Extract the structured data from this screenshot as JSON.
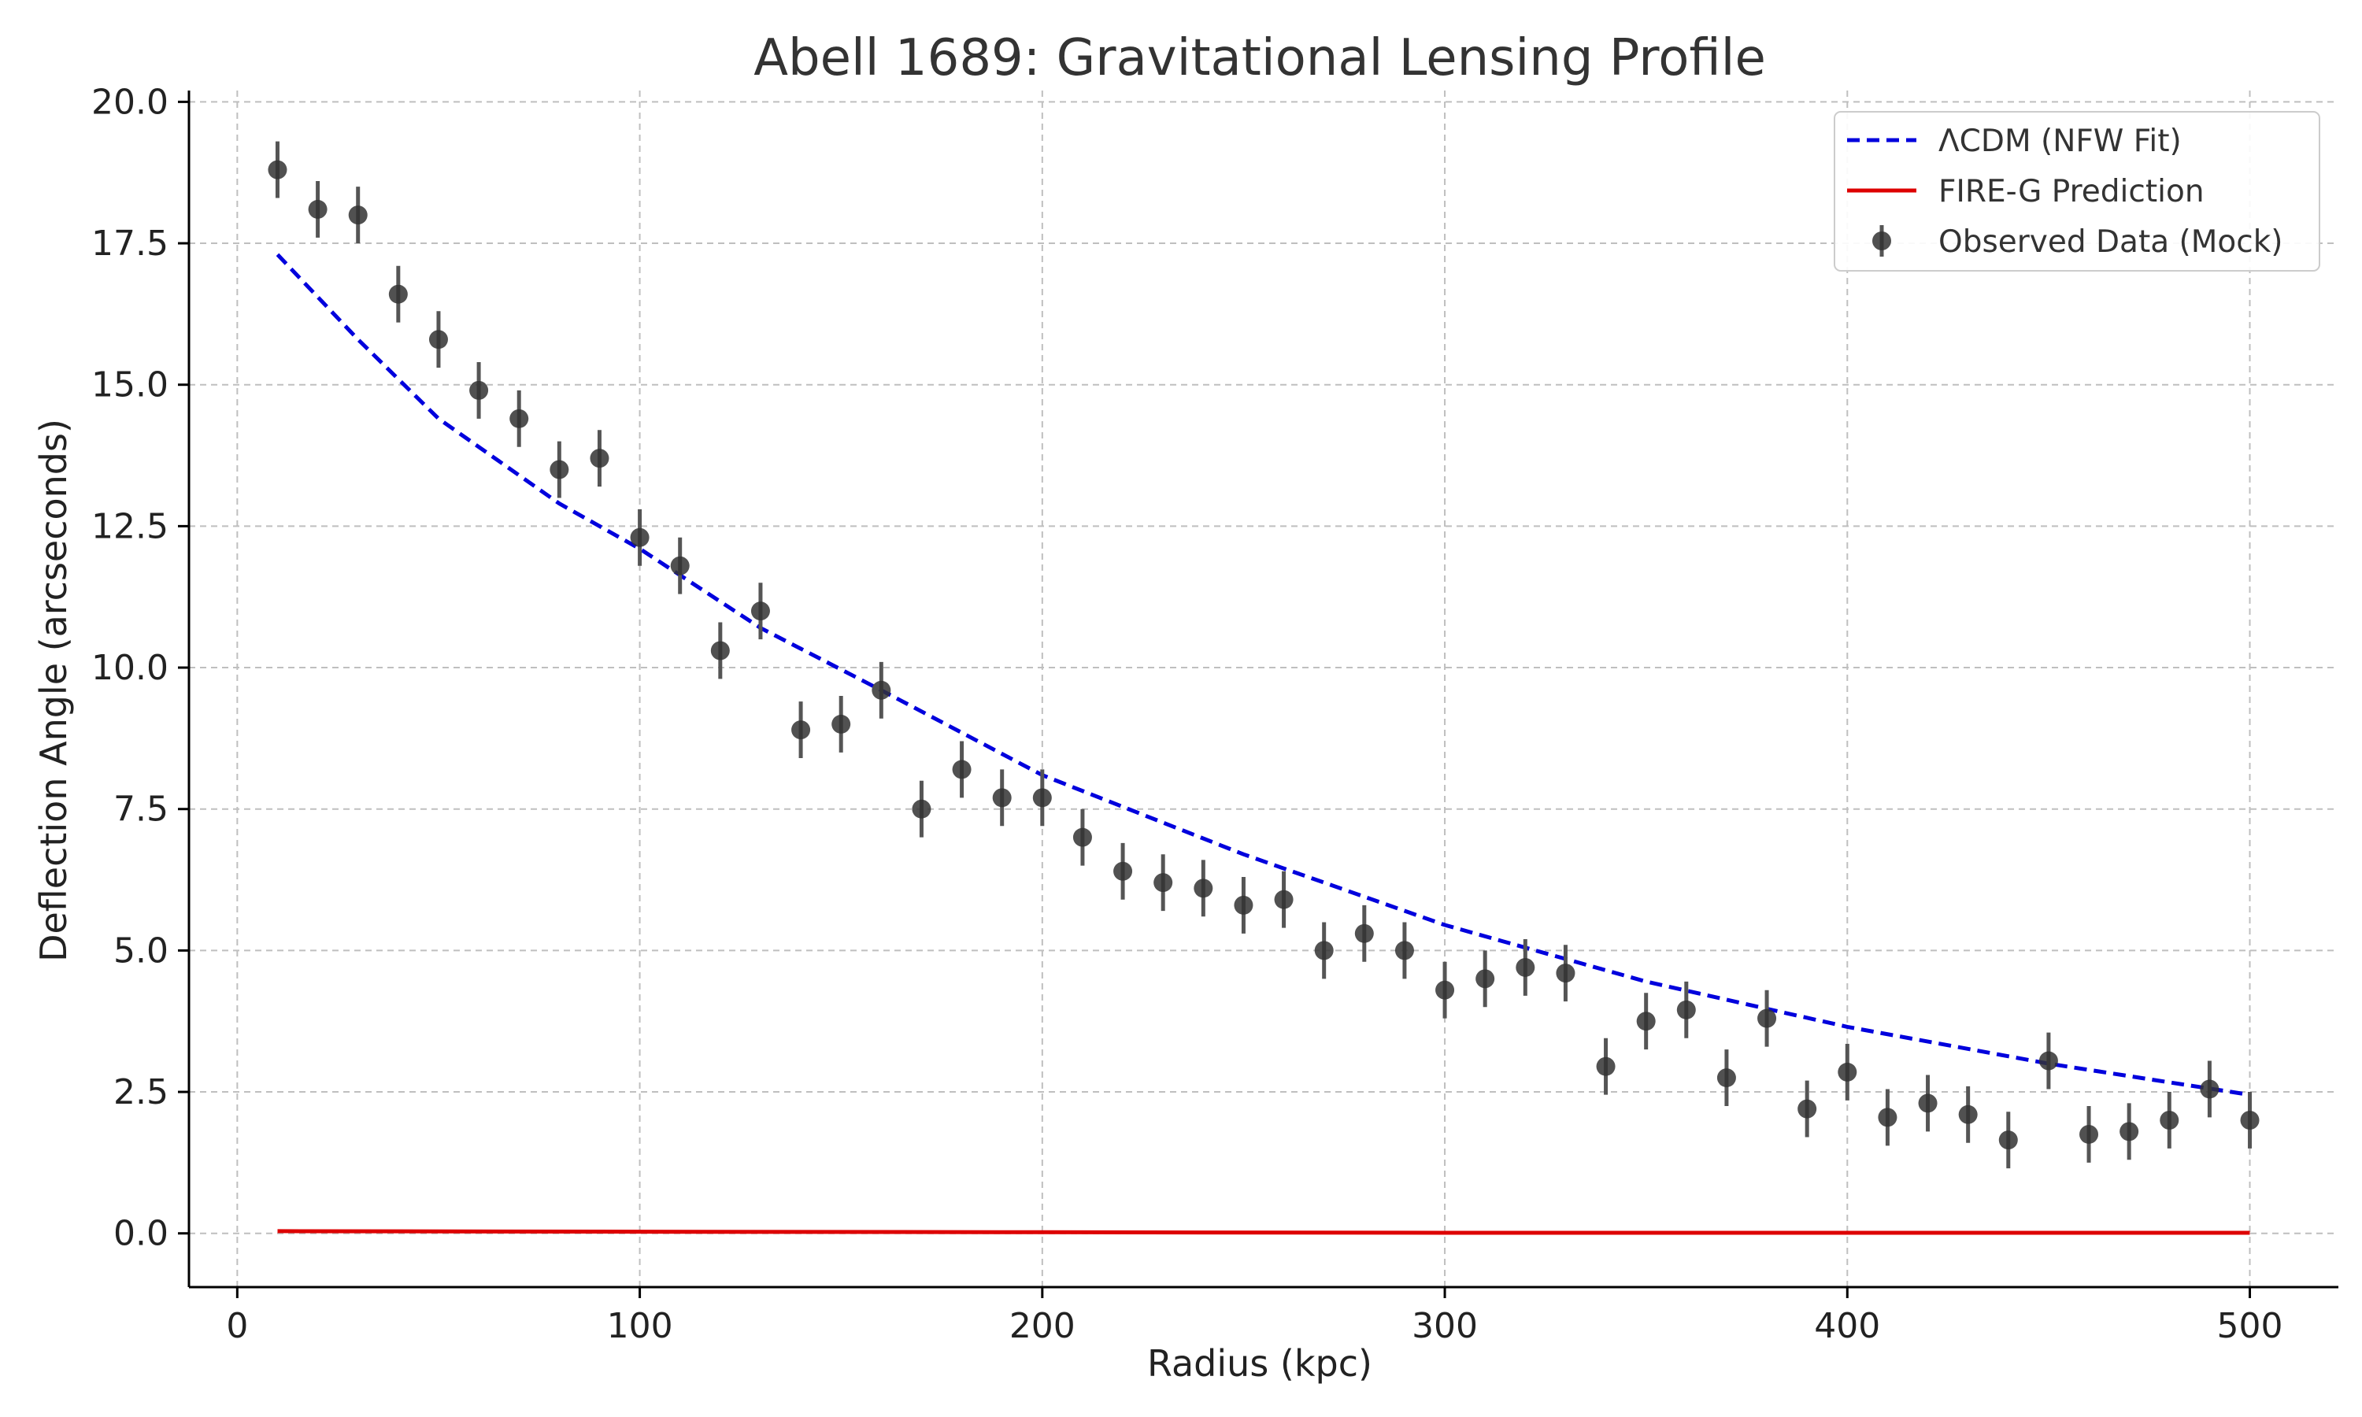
{
  "chart_data": {
    "type": "line",
    "title": "Abell 1689: Gravitational Lensing Profile",
    "xlabel": "Radius (kpc)",
    "ylabel": "Deflection Angle (arcseconds)",
    "xlim": [
      -12,
      522
    ],
    "ylim": [
      -0.95,
      20.2
    ],
    "xticks": [
      0,
      100,
      200,
      300,
      400,
      500
    ],
    "xtick_labels": [
      "0",
      "100",
      "200",
      "300",
      "400",
      "500"
    ],
    "yticks": [
      0,
      2.5,
      5,
      7.5,
      10,
      12.5,
      15,
      17.5,
      20
    ],
    "ytick_labels": [
      "0.0",
      "2.5",
      "5.0",
      "7.5",
      "10.0",
      "12.5",
      "15.0",
      "17.5",
      "20.0"
    ],
    "grid": true,
    "legend_position": "top-right",
    "series": [
      {
        "name": "ΛCDM (NFW Fit)",
        "kind": "line",
        "style": "dashed",
        "color": "#0000dd",
        "x": [
          10,
          30,
          50,
          80,
          100,
          130,
          160,
          200,
          250,
          300,
          350,
          400,
          450,
          500
        ],
        "y": [
          17.3,
          15.8,
          14.4,
          12.9,
          12.1,
          10.7,
          9.6,
          8.1,
          6.7,
          5.45,
          4.45,
          3.65,
          3.0,
          2.45
        ]
      },
      {
        "name": "FIRE-G Prediction",
        "kind": "line",
        "style": "solid",
        "color": "#dd0000",
        "x": [
          10,
          100,
          200,
          300,
          400,
          500
        ],
        "y": [
          0.04,
          0.03,
          0.02,
          0.01,
          0.01,
          0.01
        ]
      },
      {
        "name": "Observed Data (Mock)",
        "kind": "errorbar",
        "color": "#333333",
        "yerr": 0.5,
        "x": [
          10,
          20,
          30,
          40,
          50,
          60,
          70,
          80,
          90,
          100,
          110,
          120,
          130,
          140,
          150,
          160,
          170,
          180,
          190,
          200,
          210,
          220,
          230,
          240,
          250,
          260,
          270,
          280,
          290,
          300,
          310,
          320,
          330,
          340,
          350,
          360,
          370,
          380,
          390,
          400,
          410,
          420,
          430,
          440,
          450,
          460,
          470,
          480,
          490,
          500
        ],
        "y": [
          18.8,
          18.1,
          18.0,
          16.6,
          15.8,
          14.9,
          14.4,
          13.5,
          13.7,
          12.3,
          11.8,
          10.3,
          11.0,
          8.9,
          9.0,
          9.6,
          7.5,
          8.2,
          7.7,
          7.7,
          7.0,
          6.4,
          6.2,
          6.1,
          5.8,
          5.9,
          5.0,
          5.3,
          5.0,
          4.3,
          4.5,
          4.7,
          4.6,
          2.95,
          3.75,
          3.95,
          2.75,
          3.8,
          2.2,
          2.85,
          2.05,
          2.3,
          2.1,
          1.65,
          3.05,
          1.75,
          1.8,
          2.0,
          2.55,
          2.0
        ]
      }
    ]
  }
}
